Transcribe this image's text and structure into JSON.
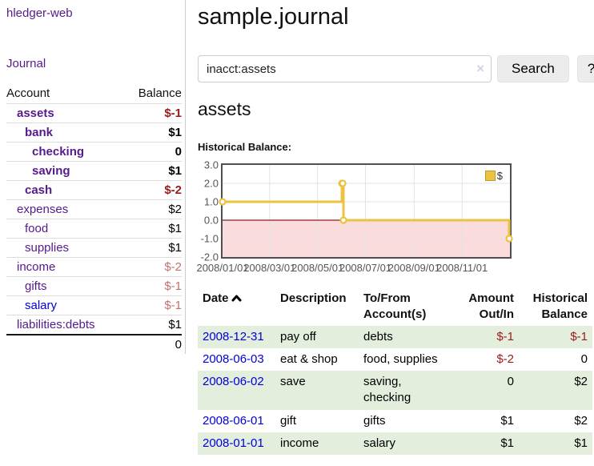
{
  "app": {
    "brand": "hledger-web"
  },
  "sidebar": {
    "journal_label": "Journal",
    "col_account": "Account",
    "col_balance": "Balance",
    "accounts": [
      {
        "name": "assets",
        "balance": "$-1"
      },
      {
        "name": "bank",
        "balance": "$1"
      },
      {
        "name": "checking",
        "balance": "0"
      },
      {
        "name": "saving",
        "balance": "$1"
      },
      {
        "name": "cash",
        "balance": "$-2"
      },
      {
        "name": "expenses",
        "balance": "$2"
      },
      {
        "name": "food",
        "balance": "$1"
      },
      {
        "name": "supplies",
        "balance": "$1"
      },
      {
        "name": "income",
        "balance": "$-2"
      },
      {
        "name": "gifts",
        "balance": "$-1"
      },
      {
        "name": "salary",
        "balance": "$-1"
      },
      {
        "name": "liabilities:debts",
        "balance": "$1"
      }
    ],
    "total": "0"
  },
  "main": {
    "title": "sample.journal",
    "search": {
      "value": "inacct:assets",
      "clear_icon": "×",
      "search_label": "Search",
      "help_label": "?"
    },
    "heading": "assets",
    "chart_label": "Historical Balance:"
  },
  "register": {
    "headers": {
      "date": "Date",
      "description": "Description",
      "account": "To/From Account(s)",
      "amount": "Amount Out/In",
      "balance": "Historical Balance"
    },
    "rows": [
      {
        "date": "2008-12-31",
        "description": "pay off",
        "account": "debts",
        "amount": "$-1",
        "balance": "$-1"
      },
      {
        "date": "2008-06-03",
        "description": "eat & shop",
        "account": "food, supplies",
        "amount": "$-2",
        "balance": "0"
      },
      {
        "date": "2008-06-02",
        "description": "save",
        "account": "saving, checking",
        "amount": "0",
        "balance": "$2"
      },
      {
        "date": "2008-06-01",
        "description": "gift",
        "account": "gifts",
        "amount": "$1",
        "balance": "$2"
      },
      {
        "date": "2008-01-01",
        "description": "income",
        "account": "salary",
        "amount": "$1",
        "balance": "$1"
      }
    ]
  },
  "chart_data": {
    "type": "line",
    "step": true,
    "title": "Historical Balance",
    "series": [
      {
        "name": "$",
        "color": "#EDC240",
        "points": [
          {
            "date": "2008-01-01",
            "day": 0,
            "value": 1
          },
          {
            "date": "2008-06-01",
            "day": 152,
            "value": 2
          },
          {
            "date": "2008-06-02",
            "day": 153,
            "value": 2
          },
          {
            "date": "2008-06-03",
            "day": 154,
            "value": 0
          },
          {
            "date": "2008-12-31",
            "day": 365,
            "value": -1
          }
        ]
      }
    ],
    "x_ticks": [
      {
        "label": "2008/01/01",
        "day": 0
      },
      {
        "label": "2008/03/01",
        "day": 60
      },
      {
        "label": "2008/05/01",
        "day": 121
      },
      {
        "label": "2008/07/01",
        "day": 182
      },
      {
        "label": "2008/09/01",
        "day": 244
      },
      {
        "label": "2008/11/01",
        "day": 305
      }
    ],
    "x_max_day": 366,
    "y_ticks": [
      "3.0",
      "2.0",
      "1.0",
      "0.0",
      "-1.0",
      "-2.0"
    ],
    "ylim": [
      -2,
      3
    ],
    "legend_position": "top-right",
    "grid": true,
    "negative_region_color": "#FBDCDC",
    "zero_line_color": "#8B1D1D",
    "grid_color": "#E3E3E3",
    "border_color": "#4F4F4F"
  }
}
